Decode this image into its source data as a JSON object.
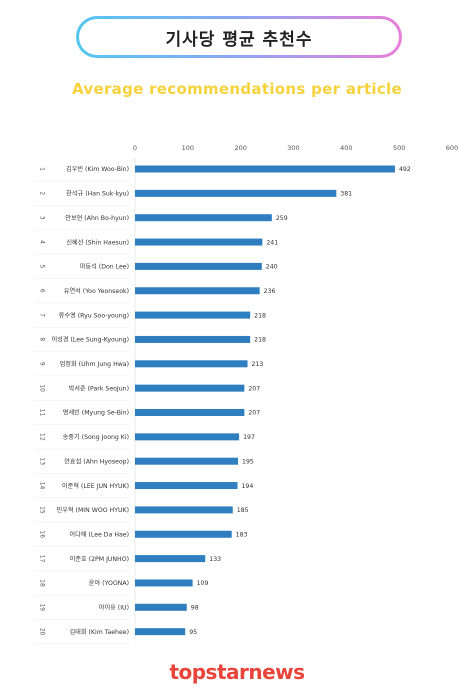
{
  "title": "기사당 평균 추천수",
  "subtitle": "Average recommendations per article",
  "brand": "topstarnews",
  "colors": {
    "bar": "#2f7fc0",
    "subtitle": "#f6d23c",
    "brand": "#e8443a"
  },
  "chart_data": {
    "type": "bar",
    "orientation": "horizontal",
    "title": "기사당 평균 추천수",
    "subtitle": "Average recommendations per article",
    "xlim": [
      0,
      600
    ],
    "xticks": [
      0,
      100,
      200,
      300,
      400,
      500,
      600
    ],
    "grid": false,
    "rows": [
      {
        "rank": "1",
        "name": "김우빈 (Kim Woo-Bin)",
        "value": 492
      },
      {
        "rank": "2",
        "name": "한석규 (Han Suk-kyu)",
        "value": 381
      },
      {
        "rank": "3",
        "name": "안보현 (Ahn Bo-hyun)",
        "value": 259
      },
      {
        "rank": "4",
        "name": "신혜선 (Shin Haesun)",
        "value": 241
      },
      {
        "rank": "5",
        "name": "마동석 (Don Lee)",
        "value": 240
      },
      {
        "rank": "6",
        "name": "유연석 (Yoo Yeonseok)",
        "value": 236
      },
      {
        "rank": "7",
        "name": "류수영 (Ryu Soo-young)",
        "value": 218
      },
      {
        "rank": "8",
        "name": "이성경 (Lee Sung-Kyoung)",
        "value": 218
      },
      {
        "rank": "9",
        "name": "엄정화 (Uhm Jung Hwa)",
        "value": 213
      },
      {
        "rank": "10",
        "name": "박서준 (Park SeoJun)",
        "value": 207
      },
      {
        "rank": "11",
        "name": "명세빈 (Myung Se-Bin)",
        "value": 207
      },
      {
        "rank": "12",
        "name": "송중기 (Song Joong Ki)",
        "value": 197
      },
      {
        "rank": "13",
        "name": "안효섭 (Ahn Hyoseop)",
        "value": 195
      },
      {
        "rank": "14",
        "name": "이준혁 (LEE JUN HYUK)",
        "value": 194
      },
      {
        "rank": "15",
        "name": "민우혁 (MIN WOO HYUK)",
        "value": 185
      },
      {
        "rank": "16",
        "name": "이다해 (Lee Da Hae)",
        "value": 183
      },
      {
        "rank": "17",
        "name": "이준호 (2PM JUNHO)",
        "value": 133
      },
      {
        "rank": "18",
        "name": "윤아 (YOONA)",
        "value": 109
      },
      {
        "rank": "19",
        "name": "아이유 (IU)",
        "value": 98
      },
      {
        "rank": "20",
        "name": "김태희 (Kim Taehee)",
        "value": 95
      }
    ]
  }
}
